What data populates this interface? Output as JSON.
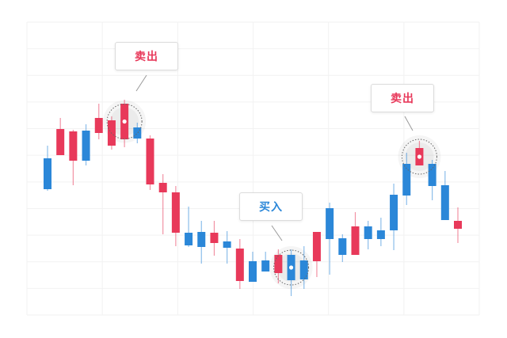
{
  "colors": {
    "red": "#e8395a",
    "blue": "#2b87d8",
    "grid": "#f2f2f2"
  },
  "chart_data": {
    "type": "candlestick",
    "title": "",
    "xlabel": "",
    "ylabel": "",
    "grid": true,
    "ylim": [
      2,
      372
    ],
    "candles": [
      {
        "o": 161,
        "h": 216,
        "l": 159,
        "c": 200
      },
      {
        "o": 237,
        "h": 251,
        "l": 204,
        "c": 204
      },
      {
        "o": 234,
        "h": 236,
        "l": 166,
        "c": 197
      },
      {
        "o": 197,
        "h": 243,
        "l": 191,
        "c": 235
      },
      {
        "o": 251,
        "h": 269,
        "l": 224,
        "c": 232
      },
      {
        "o": 248,
        "h": 253,
        "l": 211,
        "c": 216
      },
      {
        "o": 269,
        "h": 274,
        "l": 214,
        "c": 224
      },
      {
        "o": 225,
        "h": 245,
        "l": 219,
        "c": 239
      },
      {
        "o": 225,
        "h": 229,
        "l": 160,
        "c": 167
      },
      {
        "o": 169,
        "h": 180,
        "l": 104,
        "c": 157
      },
      {
        "o": 157,
        "h": 165,
        "l": 89,
        "c": 106
      },
      {
        "o": 90,
        "h": 139,
        "l": 88,
        "c": 106
      },
      {
        "o": 88,
        "h": 121,
        "l": 67,
        "c": 107
      },
      {
        "o": 106,
        "h": 121,
        "l": 77,
        "c": 93
      },
      {
        "o": 87,
        "h": 108,
        "l": 67,
        "c": 95
      },
      {
        "o": 86,
        "h": 98,
        "l": 35,
        "c": 45
      },
      {
        "o": 44,
        "h": 82,
        "l": 44,
        "c": 70
      },
      {
        "o": 57,
        "h": 82,
        "l": 57,
        "c": 71
      },
      {
        "o": 78,
        "h": 85,
        "l": 42,
        "c": 55
      },
      {
        "o": 46,
        "h": 85,
        "l": 26,
        "c": 78
      },
      {
        "o": 47,
        "h": 89,
        "l": 35,
        "c": 71
      },
      {
        "o": 107,
        "h": 107,
        "l": 50,
        "c": 70
      },
      {
        "o": 98,
        "h": 144,
        "l": 53,
        "c": 137
      },
      {
        "o": 78,
        "h": 104,
        "l": 69,
        "c": 99
      },
      {
        "o": 114,
        "h": 132,
        "l": 78,
        "c": 78
      },
      {
        "o": 98,
        "h": 121,
        "l": 85,
        "c": 114
      },
      {
        "o": 98,
        "h": 125,
        "l": 89,
        "c": 109
      },
      {
        "o": 109,
        "h": 168,
        "l": 84,
        "c": 154
      },
      {
        "o": 153,
        "h": 207,
        "l": 141,
        "c": 193
      },
      {
        "o": 213,
        "h": 222,
        "l": 191,
        "c": 191
      },
      {
        "o": 165,
        "h": 198,
        "l": 147,
        "c": 193
      },
      {
        "o": 122,
        "h": 184,
        "l": 122,
        "c": 166
      },
      {
        "o": 121,
        "h": 138,
        "l": 93,
        "c": 111
      }
    ],
    "annotations": [
      {
        "index": 6,
        "label": "卖出",
        "kind": "sell"
      },
      {
        "index": 19,
        "label": "买入",
        "kind": "buy"
      },
      {
        "index": 29,
        "label": "卖出",
        "kind": "sell"
      }
    ]
  }
}
